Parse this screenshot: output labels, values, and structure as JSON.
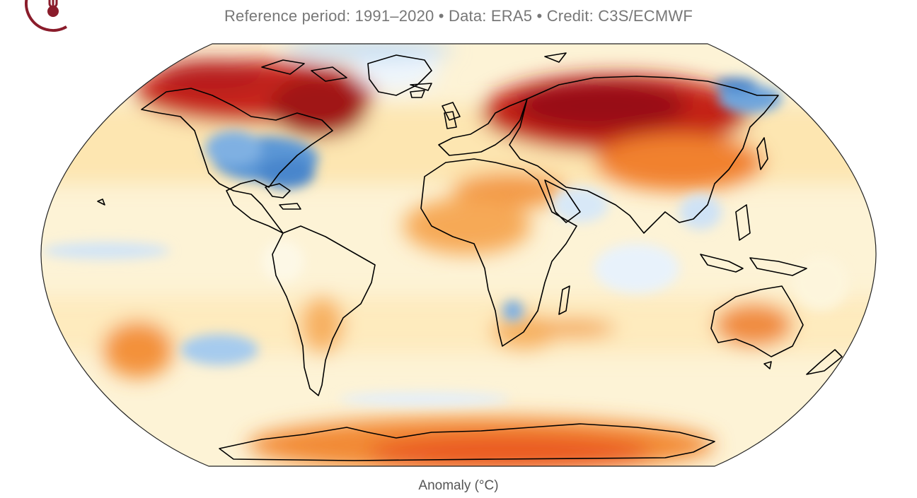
{
  "header": {
    "subtitle": "Reference period: 1991–2020 • Data: ERA5 • Credit: C3S/ECMWF",
    "logo_icon": "thermometer-icon",
    "logo_color": "#8a1c2b"
  },
  "map": {
    "projection": "Robinson",
    "variable": "temperature anomaly",
    "colorscale": {
      "cold_strong": "#4a8fd4",
      "cold": "#9cc7ec",
      "cool": "#e3f0fb",
      "neutral": "#fdf6dc",
      "mild": "#fde3a6",
      "warm": "#fbb35d",
      "hot": "#ef6a2a",
      "very_hot": "#c92a1e",
      "extreme": "#8a0c12"
    },
    "coastline_color": "#000000"
  },
  "colorbar": {
    "label": "Anomaly (°C)"
  }
}
